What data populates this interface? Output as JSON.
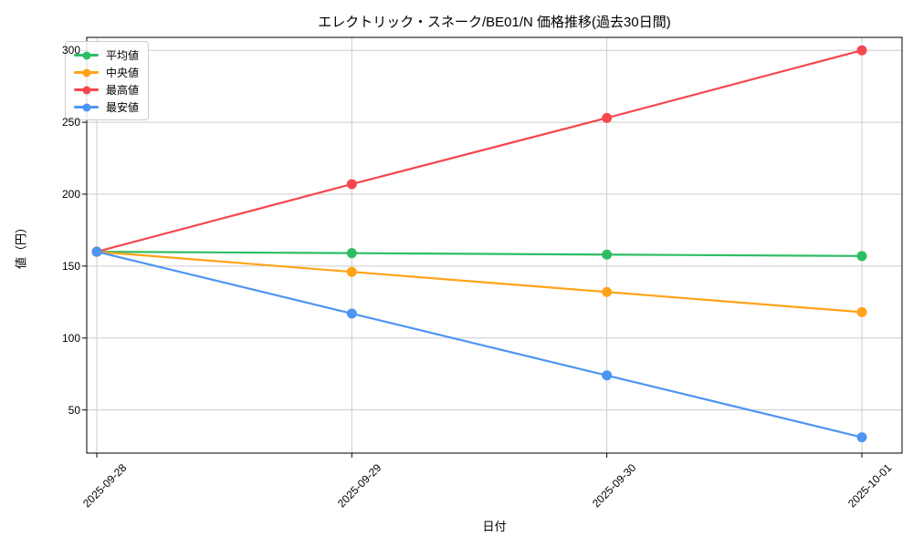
{
  "chart_data": {
    "type": "line",
    "title": "エレクトリック・スネーク/BE01/N 価格推移(過去30日間)",
    "xlabel": "日付",
    "ylabel": "値（円）",
    "categories": [
      "2025-09-28",
      "2025-09-29",
      "2025-09-30",
      "2025-10-01"
    ],
    "series": [
      {
        "name": "平均値",
        "color": "#2dbe64",
        "values": [
          160,
          159,
          158,
          157
        ]
      },
      {
        "name": "中央値",
        "color": "#ffa319",
        "values": [
          160,
          146,
          132,
          118
        ]
      },
      {
        "name": "最高値",
        "color": "#f4484e",
        "values": [
          160,
          207,
          253,
          300
        ]
      },
      {
        "name": "最安値",
        "color": "#4e95f2",
        "values": [
          160,
          117,
          74,
          31
        ]
      }
    ],
    "yticks": [
      50,
      100,
      150,
      200,
      250,
      300
    ],
    "ylim": [
      20,
      309
    ],
    "grid": true,
    "legend_position": "upper left",
    "marker": "circle"
  },
  "colors": {
    "background": "#ffffff",
    "grid": "#cccccc",
    "spine": "#000000",
    "text": "#000000"
  }
}
